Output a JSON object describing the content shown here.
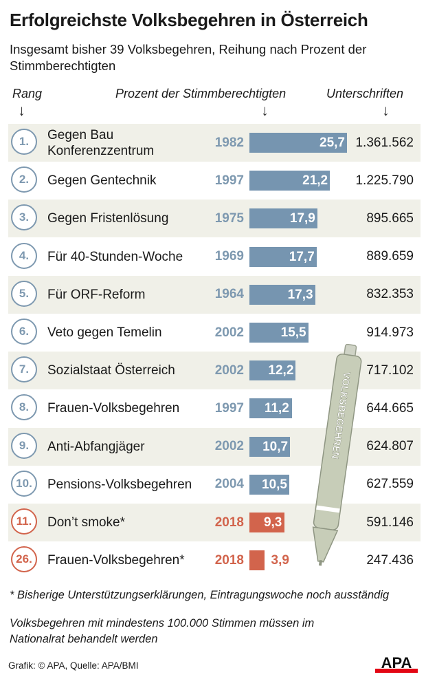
{
  "title": "Erfolgreichste Volksbegehren in Österreich",
  "subtitle": "Insgesamt bisher 39 Volksbegehren, Reihung nach Prozent der Stimmberechtigten",
  "headers": {
    "rank": "Rang",
    "percent": "Prozent der Stimmberechtigten",
    "signatures": "Unterschriften",
    "arrow": "↓"
  },
  "pen_label": "VOLKSBEGEHREN",
  "footnote": "* Bisherige Unterstützungserklärungen, Eintragungswoche noch ausständig",
  "note": "Volksbegehren mit mindestens 100.000 Stimmen müssen im Nationalrat behandelt werden",
  "credit": "Grafik: © APA, Quelle: APA/BMI",
  "logo": "APA",
  "colors": {
    "blue": "#7695b0",
    "red": "#d2644c",
    "row_alt": "#f0f0e8"
  },
  "chart_data": {
    "type": "bar",
    "orientation": "horizontal",
    "value_label": "Prozent der Stimmberechtigten",
    "xlim": [
      0,
      25.7
    ],
    "rows": [
      {
        "rank": "1.",
        "name": "Gegen Bau Konferenzzentrum",
        "year": "1982",
        "percent": 25.7,
        "percent_label": "25,7",
        "signatures": "1.361.562",
        "highlight": false
      },
      {
        "rank": "2.",
        "name": "Gegen Gentechnik",
        "year": "1997",
        "percent": 21.2,
        "percent_label": "21,2",
        "signatures": "1.225.790",
        "highlight": false
      },
      {
        "rank": "3.",
        "name": "Gegen Fristenlösung",
        "year": "1975",
        "percent": 17.9,
        "percent_label": "17,9",
        "signatures": "895.665",
        "highlight": false
      },
      {
        "rank": "4.",
        "name": "Für 40-Stunden-Woche",
        "year": "1969",
        "percent": 17.7,
        "percent_label": "17,7",
        "signatures": "889.659",
        "highlight": false
      },
      {
        "rank": "5.",
        "name": "Für ORF-Reform",
        "year": "1964",
        "percent": 17.3,
        "percent_label": "17,3",
        "signatures": "832.353",
        "highlight": false
      },
      {
        "rank": "6.",
        "name": "Veto gegen Temelin",
        "year": "2002",
        "percent": 15.5,
        "percent_label": "15,5",
        "signatures": "914.973",
        "highlight": false
      },
      {
        "rank": "7.",
        "name": "Sozialstaat Österreich",
        "year": "2002",
        "percent": 12.2,
        "percent_label": "12,2",
        "signatures": "717.102",
        "highlight": false
      },
      {
        "rank": "8.",
        "name": "Frauen-Volksbegehren",
        "year": "1997",
        "percent": 11.2,
        "percent_label": "11,2",
        "signatures": "644.665",
        "highlight": false
      },
      {
        "rank": "9.",
        "name": "Anti-Abfangjäger",
        "year": "2002",
        "percent": 10.7,
        "percent_label": "10,7",
        "signatures": "624.807",
        "highlight": false
      },
      {
        "rank": "10.",
        "name": "Pensions-Volksbegehren",
        "year": "2004",
        "percent": 10.5,
        "percent_label": "10,5",
        "signatures": "627.559",
        "highlight": false
      },
      {
        "rank": "11.",
        "name": "Don’t smoke*",
        "year": "2018",
        "percent": 9.3,
        "percent_label": "9,3",
        "signatures": "591.146",
        "highlight": true
      },
      {
        "rank": "26.",
        "name": "Frauen-Volksbegehren*",
        "year": "2018",
        "percent": 3.9,
        "percent_label": "3,9",
        "signatures": "247.436",
        "highlight": true
      }
    ]
  }
}
